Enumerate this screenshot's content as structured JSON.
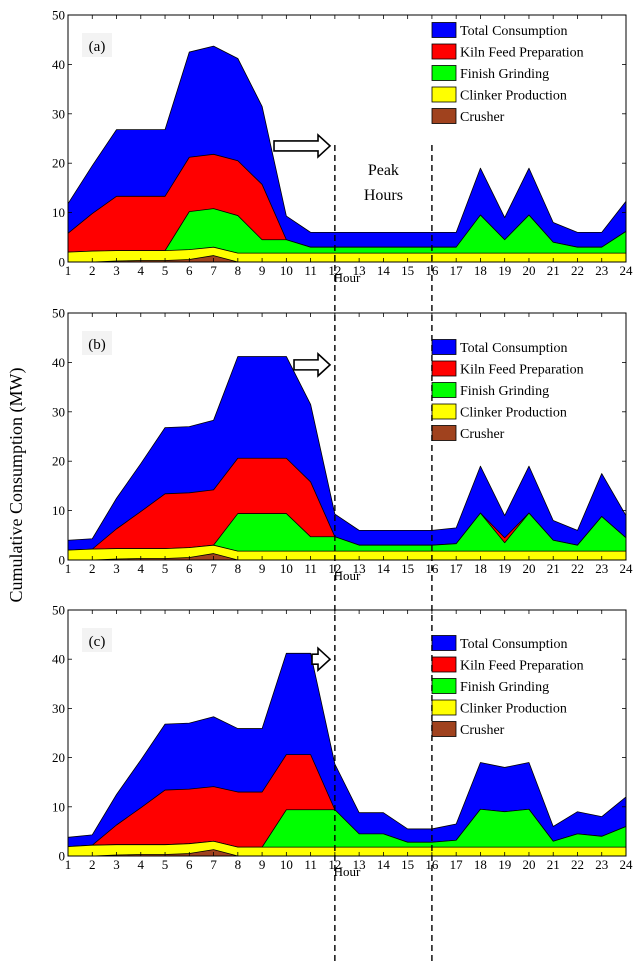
{
  "ylabel": "Cumulative Consumption (MW)",
  "peak_label_line1": "Peak",
  "peak_label_line2": "Hours",
  "colors": {
    "Total Consumption": "#0000ff",
    "Kiln Feed Preparation": "#ff0000",
    "Finish Grinding": "#00ff00",
    "Clinker Production": "#ffff00",
    "Crusher": "#a0421e"
  },
  "chart_data": [
    {
      "type": "area",
      "panel_label": "(a)",
      "xlabel": "Hour",
      "x": [
        1,
        2,
        3,
        4,
        5,
        6,
        7,
        8,
        9,
        10,
        11,
        12,
        13,
        14,
        15,
        16,
        17,
        18,
        19,
        20,
        21,
        22,
        23,
        24
      ],
      "xlim": [
        1,
        24
      ],
      "ylim": [
        0,
        50
      ],
      "yticks": [
        0,
        10,
        20,
        30,
        40,
        50
      ],
      "peak_hours": [
        12,
        16
      ],
      "arrow_tip_hour": 11.8,
      "legend": [
        "Total Consumption",
        "Kiln Feed Preparation",
        "Finish Grinding",
        "Clinker Production",
        "Crusher"
      ],
      "series": [
        {
          "name": "Total Consumption",
          "values": [
            11.8,
            19.5,
            26.8,
            26.8,
            26.8,
            42.5,
            43.7,
            41.2,
            31.5,
            9.3,
            6,
            6,
            6,
            6,
            6,
            6,
            6,
            19,
            9,
            19,
            8,
            6,
            6,
            12.3
          ]
        },
        {
          "name": "Kiln Feed Preparation",
          "values": [
            5.8,
            9.8,
            13.3,
            13.3,
            13.3,
            21.2,
            21.8,
            20.5,
            15.7,
            4.5,
            3,
            3,
            3,
            3,
            3,
            3,
            3,
            9.5,
            4.5,
            9.5,
            4,
            3,
            3,
            6.2
          ]
        },
        {
          "name": "Finish Grinding",
          "values": [
            2,
            2.2,
            2.3,
            2.3,
            2.3,
            10.2,
            10.8,
            9.4,
            4.5,
            4.5,
            3,
            3,
            3,
            3,
            3,
            3,
            3,
            9.5,
            4.5,
            9.5,
            4,
            3,
            3,
            6.2
          ]
        },
        {
          "name": "Clinker Production",
          "values": [
            2,
            2.2,
            2.3,
            2.3,
            2.3,
            2.5,
            3,
            1.8,
            1.8,
            1.8,
            1.8,
            1.8,
            1.8,
            1.8,
            1.8,
            1.8,
            1.8,
            1.8,
            1.8,
            1.8,
            1.8,
            1.8,
            1.8,
            1.8
          ]
        },
        {
          "name": "Crusher",
          "values": [
            0,
            0,
            0.2,
            0.3,
            0.3,
            0.5,
            1.3,
            0,
            0,
            0,
            0,
            0,
            0,
            0,
            0,
            0,
            0,
            0,
            0,
            0,
            0,
            0,
            0,
            0
          ]
        }
      ]
    },
    {
      "type": "area",
      "panel_label": "(b)",
      "xlabel": "Hour",
      "x": [
        1,
        2,
        3,
        4,
        5,
        6,
        7,
        8,
        9,
        10,
        11,
        12,
        13,
        14,
        15,
        16,
        17,
        18,
        19,
        20,
        21,
        22,
        23,
        24
      ],
      "xlim": [
        1,
        24
      ],
      "ylim": [
        0,
        50
      ],
      "yticks": [
        0,
        10,
        20,
        30,
        40,
        50
      ],
      "peak_hours": [
        12,
        16
      ],
      "arrow_tip_hour": 11.8,
      "legend": [
        "Total Consumption",
        "Kiln Feed Preparation",
        "Finish Grinding",
        "Clinker Production",
        "Crusher"
      ],
      "series": [
        {
          "name": "Total Consumption",
          "values": [
            4,
            4.3,
            12.5,
            19.5,
            26.8,
            27,
            28.3,
            41.2,
            41.2,
            41.2,
            31.5,
            9.3,
            6,
            6,
            6,
            6,
            6.5,
            19,
            9,
            19,
            8,
            6,
            17.5,
            9
          ]
        },
        {
          "name": "Kiln Feed Preparation",
          "values": [
            2,
            2.2,
            6.3,
            9.8,
            13.4,
            13.6,
            14.2,
            20.6,
            20.6,
            20.6,
            15.8,
            4.7,
            3,
            3,
            3,
            3,
            3.3,
            9.5,
            4.5,
            9.5,
            4,
            3,
            8.8,
            4.5
          ]
        },
        {
          "name": "Finish Grinding",
          "values": [
            2,
            2.2,
            2.3,
            2.3,
            2.3,
            2.5,
            3,
            9.4,
            9.4,
            9.4,
            4.7,
            4.7,
            3,
            3,
            3,
            3,
            3.3,
            9.5,
            3.5,
            9.5,
            4,
            3,
            8.8,
            4.5
          ]
        },
        {
          "name": "Clinker Production",
          "values": [
            2,
            2.2,
            2.3,
            2.3,
            2.3,
            2.5,
            3,
            1.8,
            1.8,
            1.8,
            1.8,
            1.8,
            1.8,
            1.8,
            1.8,
            1.8,
            1.8,
            1.8,
            1.8,
            1.8,
            1.8,
            1.8,
            1.8,
            1.8
          ]
        },
        {
          "name": "Crusher",
          "values": [
            0,
            0,
            0.2,
            0.3,
            0.3,
            0.5,
            1.3,
            0,
            0,
            0,
            0,
            0,
            0,
            0,
            0,
            0,
            0,
            0,
            0,
            0,
            0,
            0,
            0,
            0
          ]
        }
      ]
    },
    {
      "type": "area",
      "panel_label": "(c)",
      "xlabel": "Hour",
      "x": [
        1,
        2,
        3,
        4,
        5,
        6,
        7,
        8,
        9,
        10,
        11,
        12,
        13,
        14,
        15,
        16,
        17,
        18,
        19,
        20,
        21,
        22,
        23,
        24
      ],
      "xlim": [
        1,
        24
      ],
      "ylim": [
        0,
        50
      ],
      "yticks": [
        0,
        10,
        20,
        30,
        40,
        50
      ],
      "peak_hours": [
        12,
        16
      ],
      "arrow_tip_hour": 11.8,
      "legend": [
        "Total Consumption",
        "Kiln Feed Preparation",
        "Finish Grinding",
        "Clinker Production",
        "Crusher"
      ],
      "series": [
        {
          "name": "Total Consumption",
          "values": [
            3.8,
            4.3,
            12.5,
            19.5,
            26.8,
            27,
            28.3,
            25.9,
            25.9,
            41.2,
            41.2,
            18.7,
            8.8,
            8.8,
            5.5,
            5.5,
            6.5,
            19,
            18,
            19,
            6,
            9,
            8,
            12
          ]
        },
        {
          "name": "Kiln Feed Preparation",
          "values": [
            1.9,
            2.2,
            6.3,
            9.8,
            13.4,
            13.6,
            14.1,
            13,
            13,
            20.6,
            20.6,
            9.4,
            4.5,
            4.5,
            2.8,
            2.8,
            3.2,
            9.5,
            9,
            9.5,
            3,
            4.5,
            4,
            6
          ]
        },
        {
          "name": "Finish Grinding",
          "values": [
            1.9,
            2.2,
            2.3,
            2.3,
            2.3,
            2.5,
            3,
            1.8,
            1.8,
            9.4,
            9.4,
            9.4,
            4.5,
            4.5,
            2.8,
            2.8,
            3.2,
            9.5,
            9,
            9.5,
            3,
            4.5,
            4,
            6
          ]
        },
        {
          "name": "Clinker Production",
          "values": [
            1.9,
            2.2,
            2.3,
            2.3,
            2.3,
            2.5,
            3,
            1.8,
            1.8,
            1.8,
            1.8,
            1.8,
            1.8,
            1.8,
            1.8,
            1.8,
            1.8,
            1.8,
            1.8,
            1.8,
            1.8,
            1.8,
            1.8,
            1.8
          ]
        },
        {
          "name": "Crusher",
          "values": [
            0,
            0,
            0.2,
            0.3,
            0.3,
            0.5,
            1.3,
            0,
            0,
            0,
            0,
            0,
            0,
            0,
            0,
            0,
            0,
            0,
            0,
            0,
            0,
            0,
            0,
            0
          ]
        }
      ]
    }
  ]
}
